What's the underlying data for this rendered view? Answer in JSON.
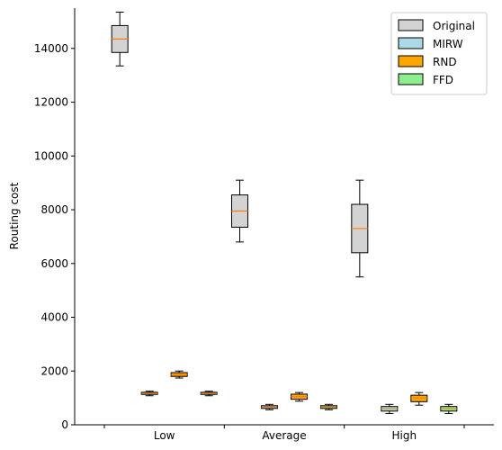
{
  "chart_data": {
    "type": "boxplot",
    "title": "",
    "xlabel": "",
    "ylabel": "Routing cost",
    "categories": [
      "Low",
      "Average",
      "High"
    ],
    "ylim": [
      0,
      15500
    ],
    "yticks": [
      0,
      2000,
      4000,
      6000,
      8000,
      10000,
      12000,
      14000
    ],
    "grid": false,
    "legend_position": "top-right",
    "series": [
      {
        "name": "Original",
        "color": "#d3d3d3",
        "boxes": [
          {
            "min": 13350,
            "q1": 13850,
            "median": 14350,
            "q3": 14850,
            "max": 15350
          },
          {
            "min": 6800,
            "q1": 7350,
            "median": 7950,
            "q3": 8550,
            "max": 9100
          },
          {
            "min": 5500,
            "q1": 6400,
            "median": 7300,
            "q3": 8200,
            "max": 9100
          }
        ]
      },
      {
        "name": "MIRW",
        "color": "#add8e6",
        "boxes": [
          {
            "min": 1080,
            "q1": 1130,
            "median": 1170,
            "q3": 1210,
            "max": 1250
          },
          {
            "min": 560,
            "q1": 610,
            "median": 660,
            "q3": 710,
            "max": 760
          },
          {
            "min": 420,
            "q1": 510,
            "median": 600,
            "q3": 680,
            "max": 760
          }
        ]
      },
      {
        "name": "RND",
        "color": "#ffa500",
        "boxes": [
          {
            "min": 1740,
            "q1": 1800,
            "median": 1870,
            "q3": 1940,
            "max": 2000
          },
          {
            "min": 880,
            "q1": 950,
            "median": 1050,
            "q3": 1140,
            "max": 1200
          },
          {
            "min": 730,
            "q1": 860,
            "median": 1000,
            "q3": 1100,
            "max": 1200
          }
        ]
      },
      {
        "name": "FFD",
        "color": "#90ee90",
        "boxes": [
          {
            "min": 1080,
            "q1": 1130,
            "median": 1170,
            "q3": 1210,
            "max": 1250
          },
          {
            "min": 560,
            "q1": 610,
            "median": 660,
            "q3": 710,
            "max": 760
          },
          {
            "min": 420,
            "q1": 510,
            "median": 600,
            "q3": 680,
            "max": 760
          }
        ]
      }
    ],
    "median_color": "#ff7f0e"
  }
}
